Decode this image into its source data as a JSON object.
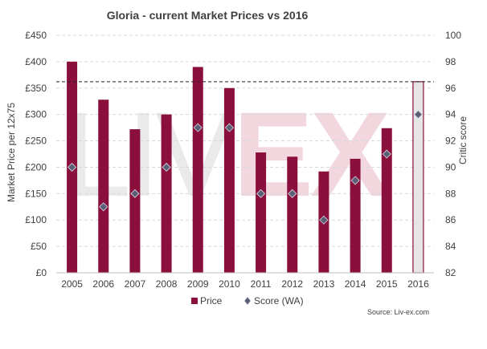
{
  "chart_data": {
    "type": "bar",
    "title": "Gloria - current Market Prices vs 2016",
    "ylabel": "Market Price per 12x75",
    "y2label": "Critic score",
    "categories": [
      "2005",
      "2006",
      "2007",
      "2008",
      "2009",
      "2010",
      "2011",
      "2012",
      "2013",
      "2014",
      "2015",
      "2016"
    ],
    "ylim": [
      0,
      450
    ],
    "y_ticks": [
      0,
      50,
      100,
      150,
      200,
      250,
      300,
      350,
      400,
      450
    ],
    "y_tick_labels": [
      "£0",
      "£50",
      "£100",
      "£150",
      "£200",
      "£250",
      "£300",
      "£350",
      "£400",
      "£450"
    ],
    "y2lim": [
      82,
      100
    ],
    "y2_ticks": [
      82,
      84,
      86,
      88,
      90,
      92,
      94,
      96,
      98,
      100
    ],
    "y2_tick_labels": [
      "82",
      "84",
      "86",
      "88",
      "90",
      "92",
      "94",
      "96",
      "98",
      "100"
    ],
    "grid": "horizontal dashed",
    "legend_position": "bottom",
    "reference_line": {
      "value": 362,
      "style": "dashed",
      "axis": "left"
    },
    "series": [
      {
        "name": "Price",
        "kind": "bar",
        "axis": "left",
        "color": "#8a0f3c",
        "values": [
          400,
          328,
          272,
          300,
          390,
          350,
          228,
          220,
          192,
          216,
          274,
          362
        ],
        "highlight_last": {
          "fill": "#e6e6e6",
          "stroke": "#8a0f3c"
        }
      },
      {
        "name": "Score (WA)",
        "kind": "scatter",
        "axis": "right",
        "marker": "diamond",
        "color": "#5a5f75",
        "values": [
          90,
          87,
          88,
          90,
          93,
          93,
          88,
          88,
          86,
          89,
          91,
          94
        ]
      }
    ],
    "watermark": "LIV-EX",
    "source": "Source: Liv-ex.com"
  }
}
